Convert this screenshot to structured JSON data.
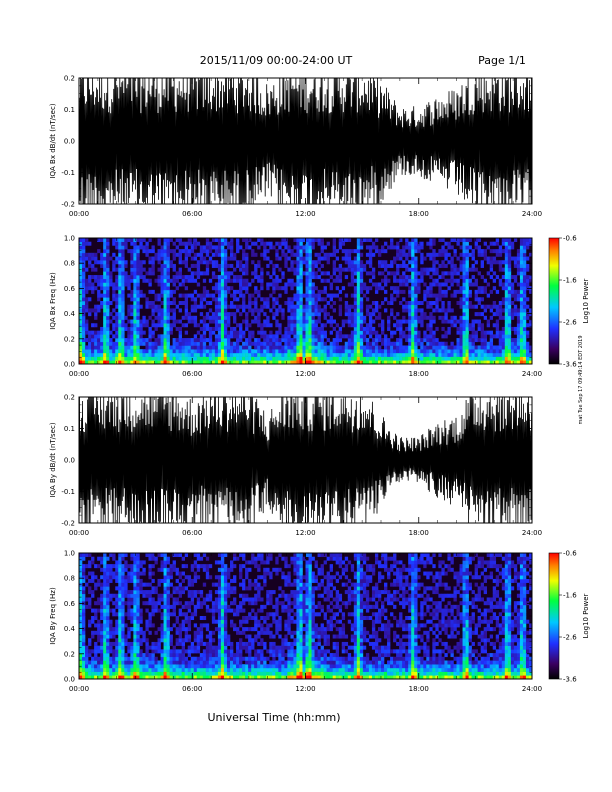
{
  "header": {
    "title": "2015/11/09  00:00-24:00 UT",
    "page": "Page 1/1"
  },
  "footer": {
    "xlabel": "Universal Time (hh:mm)",
    "side_note": "mat Tue Sep 17 09:49:14 EDT 2019"
  },
  "colors": {
    "background": "#ffffff",
    "trace": "#000000",
    "spectrogram_floor": "#160020"
  },
  "chart_data": [
    {
      "type": "line",
      "id": "bx_dbdt",
      "ylabel": "IQA Bx dB/dt (nT/sec)",
      "xlim": [
        0,
        24
      ],
      "ylim": [
        -0.2,
        0.2
      ],
      "xticks": [
        "00:00",
        "06:00",
        "12:00",
        "18:00",
        "24:00"
      ],
      "yticks": [
        "-0.2",
        "-0.1",
        "0.0",
        "0.1",
        "0.2"
      ],
      "ytick_values": [
        -0.2,
        -0.1,
        0.0,
        0.1,
        0.2
      ],
      "series": [
        {
          "x": [
            0,
            1,
            2,
            3,
            4,
            5,
            6,
            7,
            8,
            9,
            10,
            11,
            12,
            13,
            14,
            15,
            16,
            17,
            18,
            19,
            20,
            21,
            22,
            23,
            24
          ],
          "amplitude": [
            0.2,
            0.2,
            0.2,
            0.2,
            0.2,
            0.2,
            0.2,
            0.2,
            0.2,
            0.2,
            0.15,
            0.2,
            0.2,
            0.2,
            0.2,
            0.2,
            0.16,
            0.09,
            0.09,
            0.12,
            0.14,
            0.2,
            0.2,
            0.2,
            0.2
          ]
        }
      ]
    },
    {
      "type": "heatmap",
      "id": "bx_freq",
      "ylabel": "IQA Bx Freq (Hz)",
      "xlim": [
        0,
        24
      ],
      "ylim": [
        0,
        1.0
      ],
      "xticks": [
        "00:00",
        "06:00",
        "12:00",
        "18:00",
        "24:00"
      ],
      "yticks": [
        "0.0",
        "0.2",
        "0.4",
        "0.6",
        "0.8",
        "1.0"
      ],
      "ytick_values": [
        0,
        0.2,
        0.4,
        0.6,
        0.8,
        1.0
      ],
      "colorbar": {
        "label": "Log10 Power",
        "ticks": [
          "-0.6",
          "-1.6",
          "-2.6",
          "-3.6"
        ],
        "tick_values": [
          -0.6,
          -1.6,
          -2.6,
          -3.6
        ],
        "range": [
          -3.6,
          -0.6
        ]
      },
      "bursts": [
        0.1,
        1.4,
        2.2,
        3.0,
        4.6,
        7.6,
        11.7,
        12.2,
        14.8,
        17.7,
        20.5,
        22.7,
        23.5
      ]
    },
    {
      "type": "line",
      "id": "by_dbdt",
      "ylabel": "IQA By dB/dt (nT/sec)",
      "xlim": [
        0,
        24
      ],
      "ylim": [
        -0.2,
        0.2
      ],
      "xticks": [
        "00:00",
        "06:00",
        "12:00",
        "18:00",
        "24:00"
      ],
      "yticks": [
        "-0.2",
        "-0.1",
        "0.0",
        "0.1",
        "0.2"
      ],
      "ytick_values": [
        -0.2,
        -0.1,
        0.0,
        0.1,
        0.2
      ],
      "series": [
        {
          "x": [
            0,
            1,
            2,
            3,
            4,
            5,
            6,
            7,
            8,
            9,
            10,
            11,
            12,
            13,
            14,
            15,
            16,
            17,
            18,
            19,
            20,
            21,
            22,
            23,
            24
          ],
          "amplitude": [
            0.2,
            0.2,
            0.2,
            0.2,
            0.2,
            0.2,
            0.16,
            0.2,
            0.2,
            0.2,
            0.12,
            0.2,
            0.2,
            0.2,
            0.2,
            0.2,
            0.12,
            0.06,
            0.06,
            0.1,
            0.12,
            0.2,
            0.2,
            0.2,
            0.2
          ]
        }
      ]
    },
    {
      "type": "heatmap",
      "id": "by_freq",
      "ylabel": "IQA By Freq (Hz)",
      "xlim": [
        0,
        24
      ],
      "ylim": [
        0,
        1.0
      ],
      "xticks": [
        "00:00",
        "06:00",
        "12:00",
        "18:00",
        "24:00"
      ],
      "yticks": [
        "0.0",
        "0.2",
        "0.4",
        "0.6",
        "0.8",
        "1.0"
      ],
      "ytick_values": [
        0,
        0.2,
        0.4,
        0.6,
        0.8,
        1.0
      ],
      "colorbar": {
        "label": "Log10 Power",
        "ticks": [
          "-0.6",
          "-1.6",
          "-2.6",
          "-3.6"
        ],
        "tick_values": [
          -0.6,
          -1.6,
          -2.6,
          -3.6
        ],
        "range": [
          -3.6,
          -0.6
        ]
      },
      "bursts": [
        0.1,
        1.4,
        2.2,
        3.0,
        4.6,
        7.6,
        11.7,
        12.2,
        14.8,
        17.7,
        20.5,
        22.7,
        23.5
      ]
    }
  ]
}
